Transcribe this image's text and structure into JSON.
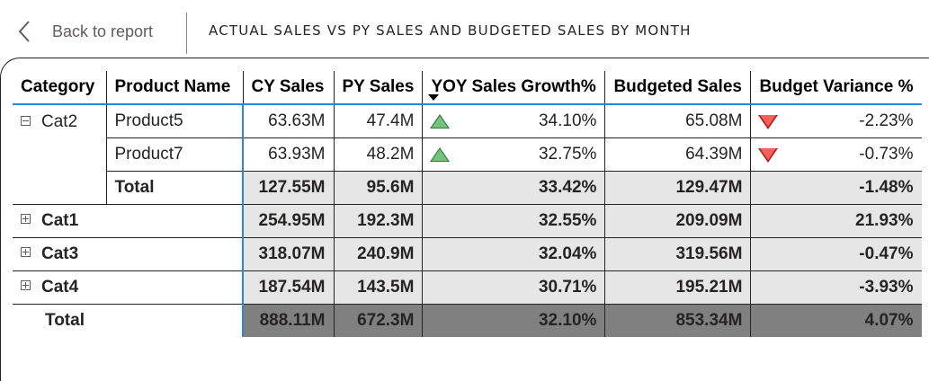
{
  "nav": {
    "back_label": "Back to report"
  },
  "page": {
    "title": "ACTUAL SALES VS PY SALES AND BUDGETED SALES BY MONTH"
  },
  "colors": {
    "accent": "#2b88d8",
    "up": "#74c27c",
    "down": "#f0625a",
    "total_fill": "#808080",
    "subtotal_fill": "#e6e6e6"
  },
  "table": {
    "headers": {
      "category": "Category",
      "product": "Product Name",
      "cy": "CY Sales",
      "py": "PY Sales",
      "yoy": "YOY Sales Growth%",
      "budget": "Budgeted Sales",
      "variance": "Budget Variance %"
    },
    "cat2": {
      "label": "Cat2",
      "rows": [
        {
          "product": "Product5",
          "cy": "63.63M",
          "py": "47.4M",
          "yoy_icon": "triangle-up-icon",
          "yoy": "34.10%",
          "budget": "65.08M",
          "var_icon": "triangle-down-icon",
          "variance": "-2.23%"
        },
        {
          "product": "Product7",
          "cy": "63.93M",
          "py": "48.2M",
          "yoy_icon": "triangle-up-icon",
          "yoy": "32.75%",
          "budget": "64.39M",
          "var_icon": "triangle-down-icon",
          "variance": "-0.73%"
        }
      ],
      "total": {
        "label": "Total",
        "cy": "127.55M",
        "py": "95.6M",
        "yoy": "33.42%",
        "budget": "129.47M",
        "variance": "-1.48%"
      }
    },
    "groups": [
      {
        "label": "Cat1",
        "cy": "254.95M",
        "py": "192.3M",
        "yoy": "32.55%",
        "budget": "209.09M",
        "variance": "21.93%"
      },
      {
        "label": "Cat3",
        "cy": "318.07M",
        "py": "240.9M",
        "yoy": "32.04%",
        "budget": "319.56M",
        "variance": "-0.47%"
      },
      {
        "label": "Cat4",
        "cy": "187.54M",
        "py": "143.5M",
        "yoy": "30.71%",
        "budget": "195.21M",
        "variance": "-3.93%"
      }
    ],
    "grand_total": {
      "label": "Total",
      "cy": "888.11M",
      "py": "672.3M",
      "yoy": "32.10%",
      "budget": "853.34M",
      "variance": "4.07%"
    }
  }
}
